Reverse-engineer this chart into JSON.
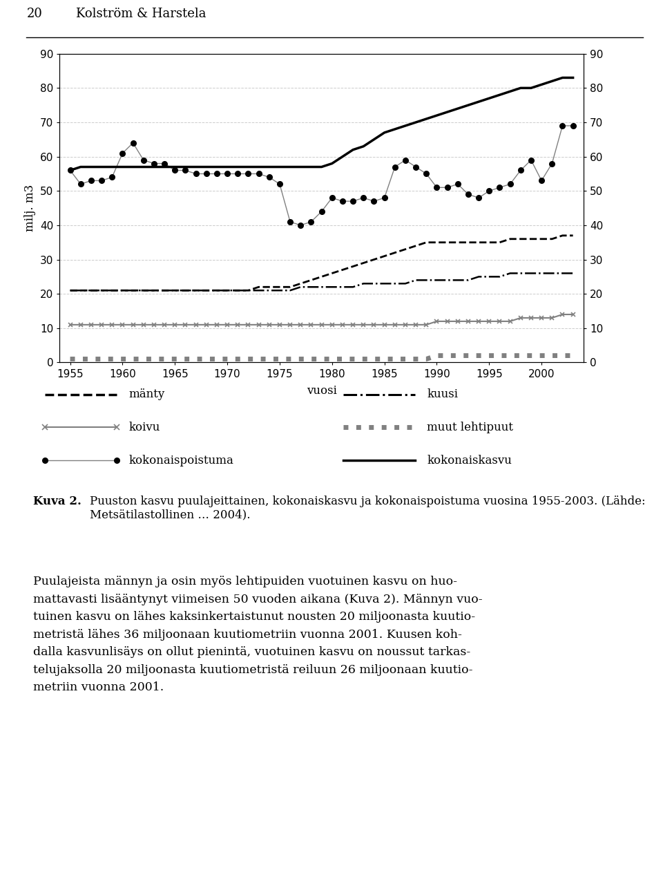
{
  "years": [
    1955,
    1956,
    1957,
    1958,
    1959,
    1960,
    1961,
    1962,
    1963,
    1964,
    1965,
    1966,
    1967,
    1968,
    1969,
    1970,
    1971,
    1972,
    1973,
    1974,
    1975,
    1976,
    1977,
    1978,
    1979,
    1980,
    1981,
    1982,
    1983,
    1984,
    1985,
    1986,
    1987,
    1988,
    1989,
    1990,
    1991,
    1992,
    1993,
    1994,
    1995,
    1996,
    1997,
    1998,
    1999,
    2000,
    2001,
    2002,
    2003
  ],
  "manty": [
    21,
    21,
    21,
    21,
    21,
    21,
    21,
    21,
    21,
    21,
    21,
    21,
    21,
    21,
    21,
    21,
    21,
    21,
    22,
    22,
    22,
    22,
    23,
    24,
    25,
    26,
    27,
    28,
    29,
    30,
    31,
    32,
    33,
    34,
    35,
    35,
    35,
    35,
    35,
    35,
    35,
    35,
    36,
    36,
    36,
    36,
    36,
    37,
    37
  ],
  "kuusi": [
    21,
    21,
    21,
    21,
    21,
    21,
    21,
    21,
    21,
    21,
    21,
    21,
    21,
    21,
    21,
    21,
    21,
    21,
    21,
    21,
    21,
    21,
    22,
    22,
    22,
    22,
    22,
    22,
    23,
    23,
    23,
    23,
    23,
    24,
    24,
    24,
    24,
    24,
    24,
    25,
    25,
    25,
    26,
    26,
    26,
    26,
    26,
    26,
    26
  ],
  "koivu": [
    11,
    11,
    11,
    11,
    11,
    11,
    11,
    11,
    11,
    11,
    11,
    11,
    11,
    11,
    11,
    11,
    11,
    11,
    11,
    11,
    11,
    11,
    11,
    11,
    11,
    11,
    11,
    11,
    11,
    11,
    11,
    11,
    11,
    11,
    11,
    12,
    12,
    12,
    12,
    12,
    12,
    12,
    12,
    13,
    13,
    13,
    13,
    14,
    14
  ],
  "muut_lehtipuut": [
    1,
    1,
    1,
    1,
    1,
    1,
    1,
    1,
    1,
    1,
    1,
    1,
    1,
    1,
    1,
    1,
    1,
    1,
    1,
    1,
    1,
    1,
    1,
    1,
    1,
    1,
    1,
    1,
    1,
    1,
    1,
    1,
    1,
    1,
    1,
    2,
    2,
    2,
    2,
    2,
    2,
    2,
    2,
    2,
    2,
    2,
    2,
    2,
    2
  ],
  "kokonaispoistuma": [
    56,
    52,
    53,
    53,
    54,
    61,
    64,
    59,
    58,
    58,
    56,
    56,
    55,
    55,
    55,
    55,
    55,
    55,
    55,
    54,
    52,
    41,
    40,
    41,
    44,
    48,
    47,
    47,
    48,
    47,
    48,
    57,
    59,
    57,
    55,
    51,
    51,
    52,
    49,
    48,
    50,
    51,
    52,
    56,
    59,
    53,
    58,
    69,
    69
  ],
  "kokonaiskasvu": [
    56,
    57,
    57,
    57,
    57,
    57,
    57,
    57,
    57,
    57,
    57,
    57,
    57,
    57,
    57,
    57,
    57,
    57,
    57,
    57,
    57,
    57,
    57,
    57,
    57,
    58,
    60,
    62,
    63,
    65,
    67,
    68,
    69,
    70,
    71,
    72,
    73,
    74,
    75,
    76,
    77,
    78,
    79,
    80,
    80,
    81,
    82,
    83,
    83
  ],
  "ylabel": "milj. m3",
  "xlabel": "vuosi",
  "ylim": [
    0,
    90
  ],
  "yticks": [
    0,
    10,
    20,
    30,
    40,
    50,
    60,
    70,
    80,
    90
  ],
  "xticks": [
    1955,
    1960,
    1965,
    1970,
    1975,
    1980,
    1985,
    1990,
    1995,
    2000
  ]
}
